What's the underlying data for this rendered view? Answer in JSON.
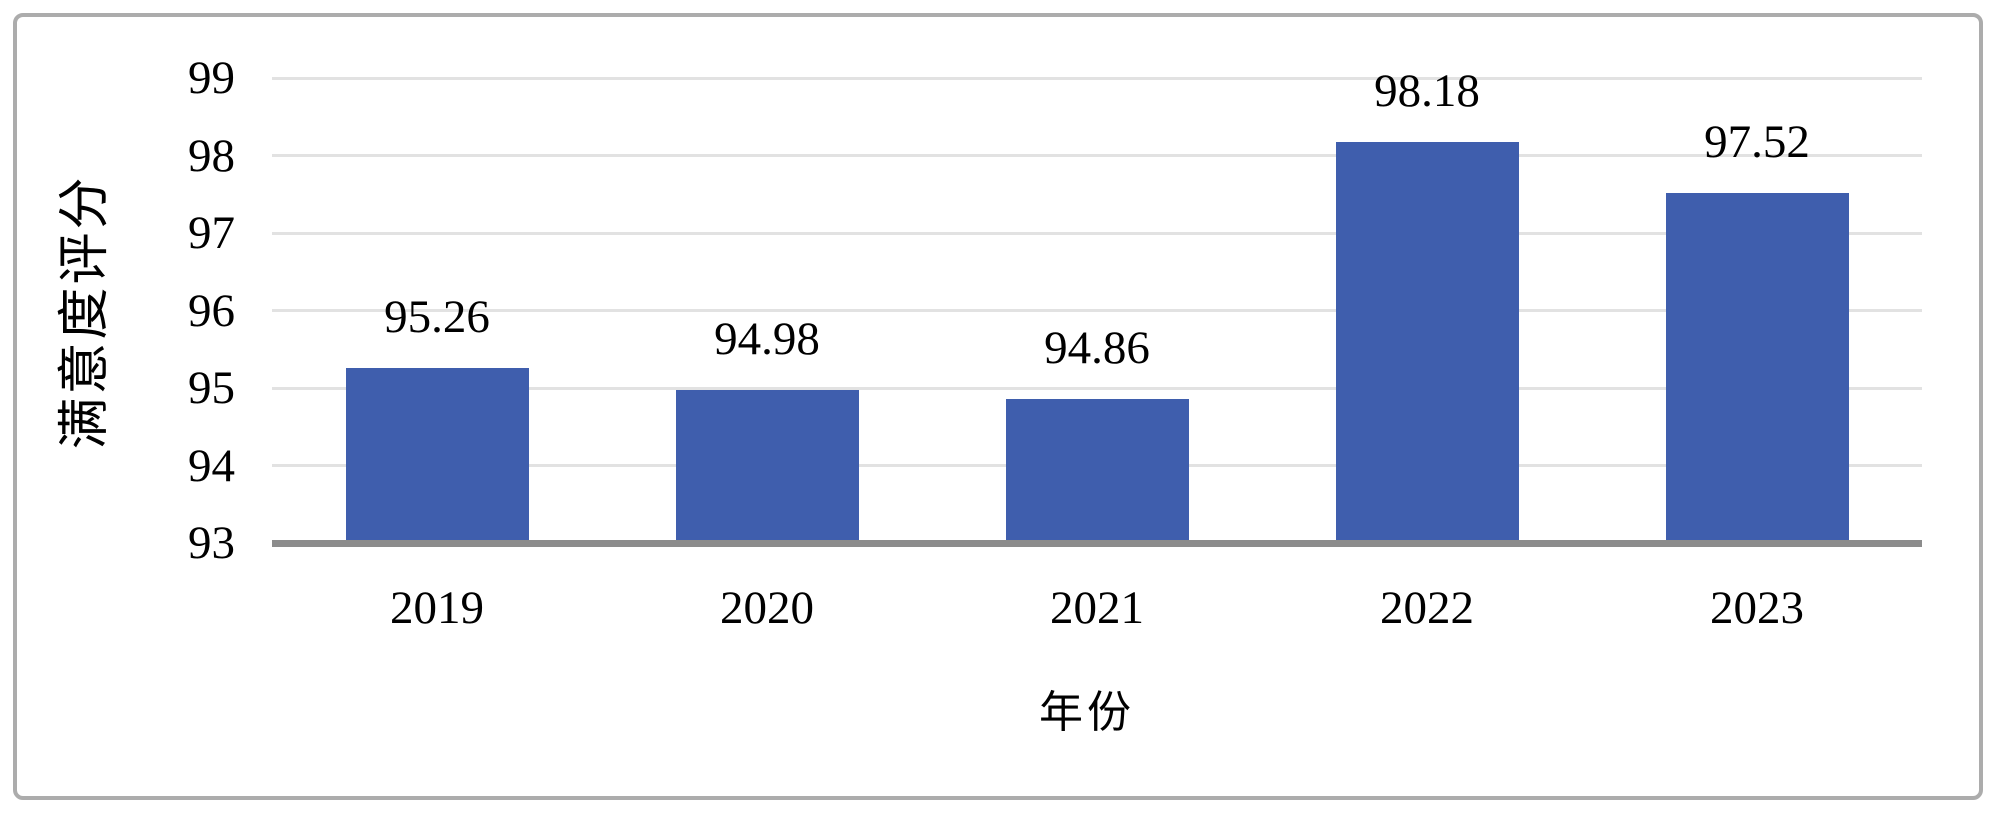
{
  "chart_data": {
    "type": "bar",
    "title": "",
    "categories": [
      "2019",
      "2020",
      "2021",
      "2022",
      "2023"
    ],
    "values": [
      95.26,
      94.98,
      94.86,
      98.18,
      97.52
    ],
    "value_labels": [
      "95.26",
      "94.98",
      "94.86",
      "98.18",
      "97.52"
    ],
    "xlabel": "年份",
    "ylabel": "满意度评分",
    "ylim": [
      93,
      99
    ],
    "yticks": [
      99,
      98,
      97,
      96,
      95,
      94,
      93
    ],
    "grid": "horizontal gridlines on, vertical off",
    "legend": "none",
    "colors": {
      "bar": "#3F5EAD",
      "gridline": "#E2E2E2",
      "axis_line": "#8C8C8C",
      "frame_border": "#ACACAC",
      "text": "#000000",
      "background": "#FFFFFF"
    }
  }
}
